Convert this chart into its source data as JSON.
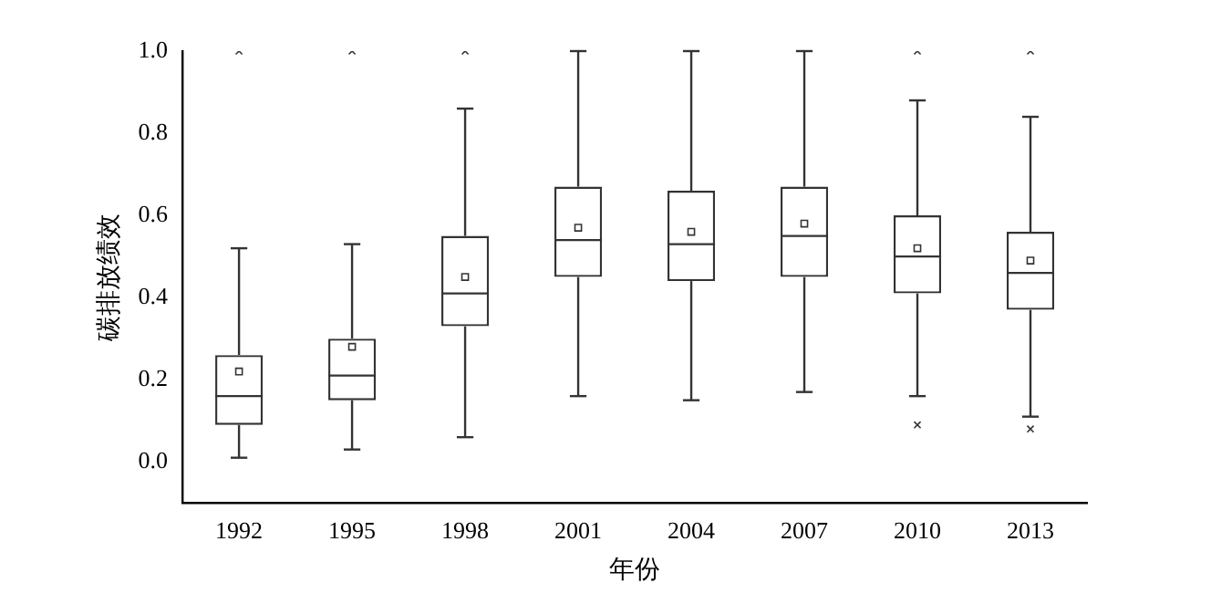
{
  "chart_data": {
    "type": "box",
    "xlabel": "年份",
    "ylabel": "碳排放绩效",
    "categories": [
      "1992",
      "1995",
      "1998",
      "2001",
      "2004",
      "2007",
      "2010",
      "2013"
    ],
    "boxes": [
      {
        "low": 0.01,
        "q1": 0.09,
        "median": 0.16,
        "q3": 0.26,
        "high": 0.52,
        "mean": 0.22,
        "outliers": [
          1.0
        ]
      },
      {
        "low": 0.03,
        "q1": 0.15,
        "median": 0.21,
        "q3": 0.3,
        "high": 0.53,
        "mean": 0.28,
        "outliers": [
          1.0
        ]
      },
      {
        "low": 0.06,
        "q1": 0.33,
        "median": 0.41,
        "q3": 0.55,
        "high": 0.86,
        "mean": 0.45,
        "outliers": [
          1.0
        ]
      },
      {
        "low": 0.16,
        "q1": 0.45,
        "median": 0.54,
        "q3": 0.67,
        "high": 1.0,
        "mean": 0.57
      },
      {
        "low": 0.15,
        "q1": 0.44,
        "median": 0.53,
        "q3": 0.66,
        "high": 1.0,
        "mean": 0.56
      },
      {
        "low": 0.17,
        "q1": 0.45,
        "median": 0.55,
        "q3": 0.67,
        "high": 1.0,
        "mean": 0.58
      },
      {
        "low": 0.16,
        "q1": 0.41,
        "median": 0.5,
        "q3": 0.6,
        "high": 0.88,
        "mean": 0.52,
        "outliers": [
          1.0,
          0.09
        ]
      },
      {
        "low": 0.11,
        "q1": 0.37,
        "median": 0.46,
        "q3": 0.56,
        "high": 0.84,
        "mean": 0.49,
        "outliers": [
          1.0,
          0.08
        ]
      }
    ],
    "color": "#333333",
    "ylim": [
      -0.1,
      1.0
    ],
    "yticks": [
      {
        "value": 0,
        "label": "0.0"
      },
      {
        "value": 0.2,
        "label": "0.2"
      },
      {
        "value": 0.4,
        "label": "0.4"
      },
      {
        "value": 0.6,
        "label": "0.6"
      },
      {
        "value": 0.8,
        "label": "0.8"
      },
      {
        "value": 1,
        "label": "1.0"
      }
    ],
    "grid": false,
    "legend": false,
    "marker": "square"
  }
}
